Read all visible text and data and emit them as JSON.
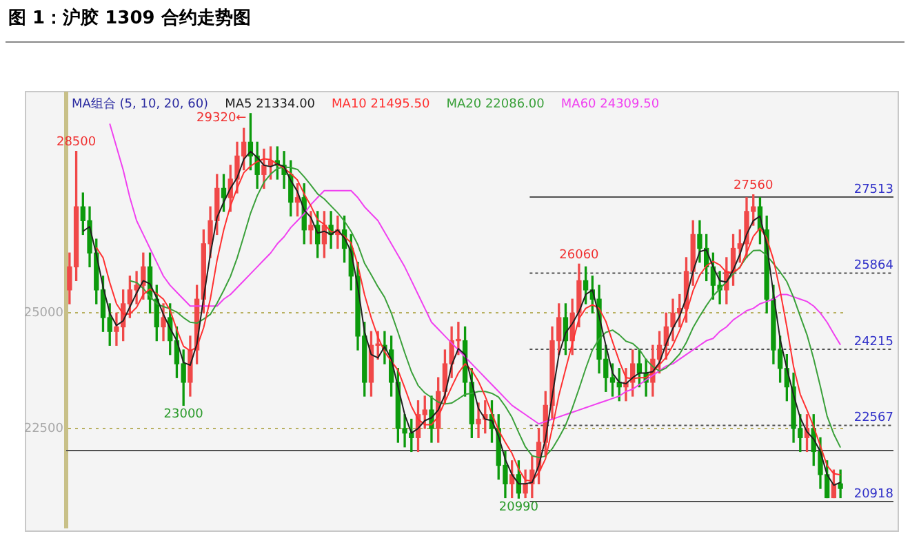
{
  "chart_data": {
    "type": "candlestick",
    "title": "图 1：沪胶 1309 合约走势图",
    "legend_title": "MA组合 (5, 10, 20, 60)",
    "categories": [
      null,
      null,
      null,
      null,
      null,
      null,
      null,
      null,
      null,
      null,
      null,
      null,
      null,
      null,
      null,
      null,
      null,
      null,
      null,
      null,
      null,
      null,
      null,
      null,
      null,
      null,
      null,
      null,
      null,
      null,
      null,
      null,
      null,
      null,
      null,
      null,
      null,
      null,
      null,
      null,
      null,
      null,
      null,
      null,
      null,
      null,
      null,
      null,
      null,
      null,
      null,
      null,
      null,
      null,
      null,
      null,
      null,
      null,
      null,
      null,
      null,
      null,
      null,
      null,
      null,
      null,
      null,
      null,
      null,
      null,
      null,
      null,
      null,
      null,
      null,
      null,
      null,
      null,
      null,
      null,
      null,
      null,
      null,
      null,
      null,
      null,
      null,
      null,
      null,
      null,
      null,
      null,
      null,
      null,
      null,
      null,
      null,
      null,
      null,
      null,
      null,
      null,
      null,
      null,
      null,
      null,
      null,
      null,
      null,
      null,
      null,
      null,
      null,
      null,
      null,
      null
    ],
    "ohlc": [
      [
        25500,
        26300,
        25200,
        26000
      ],
      [
        26000,
        28500,
        25700,
        27300
      ],
      [
        27300,
        27600,
        26700,
        27000
      ],
      [
        27000,
        27300,
        26000,
        26300
      ],
      [
        26300,
        26600,
        25200,
        25500
      ],
      [
        25500,
        25800,
        24600,
        24900
      ],
      [
        24900,
        25200,
        24300,
        24600
      ],
      [
        24600,
        25000,
        24300,
        24700
      ],
      [
        24700,
        25500,
        24400,
        25200
      ],
      [
        25200,
        25800,
        24900,
        25500
      ],
      [
        25500,
        25900,
        25200,
        25600
      ],
      [
        25600,
        26300,
        25300,
        26000
      ],
      [
        26000,
        26300,
        25000,
        25300
      ],
      [
        25300,
        25600,
        24400,
        24700
      ],
      [
        24700,
        25200,
        24400,
        24900
      ],
      [
        24900,
        25200,
        24100,
        24400
      ],
      [
        24400,
        24700,
        23600,
        23900
      ],
      [
        23900,
        24200,
        23000,
        23500
      ],
      [
        23500,
        24500,
        23200,
        24200
      ],
      [
        24200,
        25600,
        23900,
        25300
      ],
      [
        25300,
        26800,
        25000,
        26500
      ],
      [
        26500,
        27300,
        26200,
        27000
      ],
      [
        27000,
        28000,
        26700,
        27700
      ],
      [
        27700,
        28000,
        27200,
        27500
      ],
      [
        27500,
        28200,
        27200,
        27900
      ],
      [
        27900,
        28700,
        27600,
        28400
      ],
      [
        28400,
        29000,
        28100,
        28700
      ],
      [
        28700,
        29320,
        28100,
        28400
      ],
      [
        28400,
        28700,
        27700,
        28000
      ],
      [
        28000,
        28550,
        27700,
        28200
      ],
      [
        28200,
        28600,
        27900,
        28300
      ],
      [
        28300,
        28600,
        27900,
        28200
      ],
      [
        28200,
        28500,
        27700,
        28000
      ],
      [
        28000,
        28300,
        27100,
        27400
      ],
      [
        27400,
        27800,
        27100,
        27500
      ],
      [
        27500,
        27800,
        26500,
        26800
      ],
      [
        26800,
        27200,
        26500,
        26900
      ],
      [
        26900,
        27200,
        26200,
        26500
      ],
      [
        26500,
        27200,
        26200,
        26900
      ],
      [
        26900,
        27200,
        26400,
        26700
      ],
      [
        26700,
        27100,
        26400,
        26800
      ],
      [
        26800,
        27100,
        26100,
        26400
      ],
      [
        26400,
        26700,
        25500,
        25800
      ],
      [
        25800,
        26100,
        24200,
        24500
      ],
      [
        24500,
        24800,
        23200,
        23500
      ],
      [
        23500,
        24600,
        23200,
        24300
      ],
      [
        24300,
        24600,
        24000,
        24300
      ],
      [
        24300,
        24600,
        23900,
        24200
      ],
      [
        24200,
        24500,
        23200,
        23500
      ],
      [
        23500,
        23800,
        22200,
        22500
      ],
      [
        22500,
        22800,
        22100,
        22400
      ],
      [
        22400,
        22700,
        22000,
        22300
      ],
      [
        22300,
        23100,
        22000,
        22800
      ],
      [
        22800,
        23200,
        22500,
        22900
      ],
      [
        22900,
        23200,
        22200,
        22500
      ],
      [
        22500,
        23600,
        22200,
        23300
      ],
      [
        23300,
        24200,
        23050,
        23900
      ],
      [
        23900,
        24700,
        23600,
        24400
      ],
      [
        24400,
        24800,
        24100,
        24400
      ],
      [
        24400,
        24700,
        23200,
        23500
      ],
      [
        23500,
        23800,
        22300,
        22600
      ],
      [
        22600,
        23050,
        22300,
        22700
      ],
      [
        22700,
        23100,
        22400,
        22800
      ],
      [
        22800,
        23100,
        22200,
        22500
      ],
      [
        22500,
        22800,
        21400,
        21700
      ],
      [
        21700,
        22000,
        21000,
        21300
      ],
      [
        21300,
        21800,
        21000,
        21500
      ],
      [
        21500,
        21800,
        20990,
        21100
      ],
      [
        21100,
        21600,
        21000,
        21300
      ],
      [
        21300,
        21900,
        21000,
        21600
      ],
      [
        21600,
        22500,
        21300,
        22200
      ],
      [
        22200,
        23300,
        21900,
        23000
      ],
      [
        23000,
        24700,
        22700,
        24400
      ],
      [
        24400,
        25200,
        24100,
        24900
      ],
      [
        24900,
        25200,
        24100,
        24400
      ],
      [
        24400,
        25300,
        24100,
        25000
      ],
      [
        25000,
        26060,
        24700,
        25700
      ],
      [
        25700,
        26000,
        25200,
        25500
      ],
      [
        25500,
        25800,
        25000,
        25300
      ],
      [
        25300,
        25600,
        23700,
        24000
      ],
      [
        24000,
        24300,
        23300,
        23600
      ],
      [
        23600,
        23900,
        23200,
        23500
      ],
      [
        23500,
        23800,
        23100,
        23400
      ],
      [
        23400,
        23800,
        23100,
        23500
      ],
      [
        23500,
        24200,
        23200,
        23900
      ],
      [
        23900,
        24200,
        23400,
        23700
      ],
      [
        23700,
        24000,
        23200,
        23500
      ],
      [
        23500,
        24300,
        23200,
        24000
      ],
      [
        24000,
        24600,
        23700,
        24300
      ],
      [
        24300,
        25000,
        24000,
        24700
      ],
      [
        24700,
        25300,
        24400,
        25000
      ],
      [
        25000,
        25400,
        24700,
        25100
      ],
      [
        25100,
        26200,
        24800,
        25900
      ],
      [
        25900,
        27000,
        25600,
        26700
      ],
      [
        26700,
        27000,
        26100,
        26400
      ],
      [
        26400,
        26700,
        25700,
        26000
      ],
      [
        26000,
        26300,
        25300,
        25600
      ],
      [
        25600,
        25900,
        25200,
        25500
      ],
      [
        25500,
        26200,
        25200,
        25900
      ],
      [
        25900,
        26700,
        25600,
        26400
      ],
      [
        26400,
        26800,
        26100,
        26500
      ],
      [
        26500,
        27500,
        26200,
        27200
      ],
      [
        27200,
        27560,
        26900,
        27300
      ],
      [
        27300,
        27500,
        26500,
        26800
      ],
      [
        26800,
        27100,
        25000,
        25300
      ],
      [
        25300,
        25600,
        23900,
        24200
      ],
      [
        24200,
        24500,
        23500,
        23800
      ],
      [
        23800,
        24100,
        23100,
        23400
      ],
      [
        23400,
        23700,
        22200,
        22500
      ],
      [
        22500,
        22800,
        22000,
        22300
      ],
      [
        22300,
        22800,
        22000,
        22500
      ],
      [
        22500,
        22800,
        21700,
        22000
      ],
      [
        22000,
        22300,
        21200,
        21500
      ],
      [
        21500,
        21800,
        21000,
        21000
      ],
      [
        21000,
        21600,
        21000,
        21300
      ],
      [
        21300,
        21600,
        21000,
        21200
      ]
    ],
    "colors": [
      "#f04848",
      "#f04848",
      "#0c9a0c",
      "#0c9a0c",
      "#0c9a0c",
      "#0c9a0c",
      "#0c9a0c",
      "#f04848",
      "#f04848",
      "#f04848",
      "#f04848",
      "#f04848",
      "#0c9a0c",
      "#0c9a0c",
      "#f04848",
      "#0c9a0c",
      "#0c9a0c",
      "#0c9a0c",
      "#f04848",
      "#f04848",
      "#f04848",
      "#f04848",
      "#f04848",
      "#0c9a0c",
      "#f04848",
      "#f04848",
      "#f04848",
      "#0c9a0c",
      "#0c9a0c",
      "#f04848",
      "#f04848",
      "#0c9a0c",
      "#0c9a0c",
      "#0c9a0c",
      "#f04848",
      "#0c9a0c",
      "#f04848",
      "#0c9a0c",
      "#f04848",
      "#0c9a0c",
      "#f04848",
      "#0c9a0c",
      "#0c9a0c",
      "#0c9a0c",
      "#0c9a0c",
      "#f04848",
      "#f04848",
      "#0c9a0c",
      "#0c9a0c",
      "#0c9a0c",
      "#0c9a0c",
      "#0c9a0c",
      "#f04848",
      "#f04848",
      "#0c9a0c",
      "#f04848",
      "#f04848",
      "#f04848",
      "#f04848",
      "#0c9a0c",
      "#0c9a0c",
      "#f04848",
      "#f04848",
      "#0c9a0c",
      "#0c9a0c",
      "#0c9a0c",
      "#f04848",
      "#0c9a0c",
      "#f04848",
      "#f04848",
      "#f04848",
      "#f04848",
      "#f04848",
      "#f04848",
      "#0c9a0c",
      "#f04848",
      "#f04848",
      "#0c9a0c",
      "#0c9a0c",
      "#0c9a0c",
      "#0c9a0c",
      "#0c9a0c",
      "#0c9a0c",
      "#f04848",
      "#f04848",
      "#0c9a0c",
      "#0c9a0c",
      "#f04848",
      "#f04848",
      "#f04848",
      "#f04848",
      "#f04848",
      "#f04848",
      "#f04848",
      "#0c9a0c",
      "#0c9a0c",
      "#0c9a0c",
      "#0c9a0c",
      "#f04848",
      "#f04848",
      "#f04848",
      "#f04848",
      "#f04848",
      "#0c9a0c",
      "#0c9a0c",
      "#0c9a0c",
      "#0c9a0c",
      "#0c9a0c",
      "#0c9a0c",
      "#0c9a0c",
      "#f04848",
      "#0c9a0c",
      "#0c9a0c",
      "#0c9a0c",
      "#f04848",
      "#0c9a0c"
    ],
    "series": [
      {
        "name": "MA5 21334.00",
        "type": "line",
        "color": "#202020",
        "values": [
          null,
          null,
          26770,
          26870,
          26270,
          25570,
          25000,
          24730,
          24830,
          25130,
          25430,
          25700,
          25630,
          25330,
          24970,
          24670,
          24400,
          23930,
          23870,
          24330,
          25330,
          26270,
          27070,
          27400,
          27700,
          27930,
          28330,
          28500,
          28370,
          28200,
          28170,
          28230,
          28170,
          27870,
          27630,
          27230,
          27070,
          26730,
          26770,
          26700,
          26800,
          26630,
          26330,
          25570,
          24600,
          24100,
          24030,
          24270,
          24000,
          23400,
          22800,
          22400,
          22500,
          22670,
          22730,
          22900,
          23230,
          23870,
          24230,
          24100,
          23500,
          22930,
          22700,
          22670,
          22330,
          21830,
          21500,
          21300,
          21300,
          21330,
          21700,
          22270,
          23200,
          24100,
          24570,
          24770,
          25030,
          25400,
          25500,
          24930,
          24300,
          23700,
          23500,
          23470,
          23600,
          23700,
          23700,
          23730,
          23930,
          24330,
          24670,
          24930,
          25330,
          25900,
          26330,
          26370,
          26000,
          25700,
          25670,
          25930,
          26270,
          26700,
          27000,
          27100,
          26470,
          25430,
          24430,
          23800,
          23230,
          22730,
          22430,
          22270,
          22000,
          21500,
          21270,
          21334
        ]
      },
      {
        "name": "MA10 21495.50",
        "type": "line",
        "color": "#ff3030",
        "values": [
          null,
          null,
          null,
          null,
          26420,
          26200,
          25660,
          25200,
          24980,
          24980,
          25120,
          25400,
          25520,
          25420,
          25300,
          25060,
          24640,
          24280,
          24180,
          24260,
          24680,
          25300,
          26140,
          26800,
          27320,
          27700,
          28040,
          28180,
          28280,
          28340,
          28320,
          28220,
          28140,
          28020,
          27880,
          27580,
          27320,
          27020,
          26920,
          26760,
          26760,
          26660,
          26520,
          26040,
          25400,
          24900,
          24480,
          24160,
          23960,
          23760,
          23380,
          22980,
          22700,
          22580,
          22580,
          22760,
          23080,
          23400,
          23700,
          23900,
          23760,
          23520,
          23200,
          22820,
          22460,
          22200,
          21960,
          21620,
          21380,
          21360,
          21540,
          21840,
          22500,
          23220,
          23780,
          24340,
          24880,
          25100,
          25180,
          25100,
          24820,
          24380,
          23960,
          23600,
          23580,
          23600,
          23600,
          23720,
          23880,
          24040,
          24300,
          24620,
          25000,
          25480,
          25820,
          26020,
          26120,
          26040,
          25880,
          25880,
          25980,
          26300,
          26660,
          26840,
          26620,
          26160,
          25480,
          24700,
          23840,
          23240,
          22900,
          22540,
          22120,
          21700,
          21520,
          21495.5
        ]
      },
      {
        "name": "MA20 22086.00",
        "type": "line",
        "color": "#3aa03a",
        "values": [
          null,
          null,
          null,
          null,
          null,
          null,
          null,
          null,
          null,
          25700,
          25660,
          25530,
          25360,
          25200,
          25140,
          25090,
          25020,
          24900,
          24800,
          24780,
          24870,
          24970,
          25210,
          25490,
          25790,
          26190,
          26670,
          27160,
          27540,
          27830,
          28010,
          28130,
          28160,
          28150,
          28110,
          27950,
          27770,
          27580,
          27470,
          27320,
          27170,
          26990,
          26770,
          26480,
          26080,
          25830,
          25570,
          25340,
          25000,
          24580,
          24140,
          23730,
          23430,
          23270,
          23170,
          23070,
          23030,
          23050,
          23140,
          23240,
          23260,
          23300,
          23300,
          23260,
          23180,
          22980,
          22740,
          22410,
          22100,
          21910,
          21870,
          21900,
          22060,
          22300,
          22570,
          22940,
          23360,
          23800,
          24200,
          24440,
          24580,
          24630,
          24530,
          24390,
          24340,
          24210,
          23990,
          23840,
          23740,
          23810,
          23950,
          24110,
          24360,
          24680,
          24930,
          25160,
          25370,
          25520,
          25680,
          25850,
          26000,
          26210,
          26350,
          26360,
          26250,
          26070,
          25890,
          25680,
          25340,
          24930,
          24530,
          24010,
          23410,
          22770,
          22380,
          22086
        ]
      },
      {
        "name": "MA60 24309.50",
        "type": "line",
        "color": "#f040f0",
        "values": [
          null,
          null,
          null,
          null,
          null,
          null,
          29100,
          28600,
          28100,
          27500,
          27000,
          26700,
          26400,
          26100,
          25800,
          25600,
          25450,
          25300,
          25150,
          25150,
          25150,
          25150,
          25150,
          25300,
          25400,
          25550,
          25700,
          25850,
          26000,
          26150,
          26300,
          26500,
          26650,
          26850,
          27000,
          27150,
          27350,
          27500,
          27650,
          27650,
          27650,
          27650,
          27650,
          27500,
          27300,
          27150,
          27000,
          26750,
          26500,
          26250,
          26000,
          25700,
          25400,
          25100,
          24800,
          24650,
          24500,
          24350,
          24200,
          24050,
          23900,
          23750,
          23600,
          23450,
          23300,
          23150,
          23000,
          22900,
          22800,
          22700,
          22600,
          22650,
          22700,
          22750,
          22800,
          22850,
          22900,
          22950,
          23000,
          23050,
          23100,
          23150,
          23200,
          23300,
          23350,
          23450,
          23550,
          23650,
          23750,
          23850,
          23900,
          24000,
          24100,
          24200,
          24300,
          24400,
          24450,
          24600,
          24700,
          24850,
          24950,
          25050,
          25100,
          25200,
          25250,
          25300,
          25400,
          25400,
          25350,
          25300,
          25250,
          25150,
          25000,
          24800,
          24550,
          24309.5
        ]
      }
    ],
    "ylim": [
      20350,
      29750
    ],
    "yticks": [
      25000,
      22500
    ],
    "grid": "y",
    "legend": "top",
    "ref_lines": [
      {
        "axis": "y",
        "value": 27513,
        "label": "27513",
        "color": "#505050",
        "line_style": "solid"
      },
      {
        "axis": "y",
        "value": 25864,
        "label": "25864",
        "color": "#505050",
        "line_style": "dotted"
      },
      {
        "axis": "y",
        "value": 24215,
        "label": "24215",
        "color": "#505050",
        "line_style": "dotted"
      },
      {
        "axis": "y",
        "value": 22567,
        "label": "22567",
        "color": "#505050",
        "line_style": "dotted"
      },
      {
        "axis": "y",
        "value": 20918,
        "label": "20918",
        "color": "#505050",
        "line_style": "solid"
      },
      {
        "axis": "y",
        "value": 22020,
        "label": null,
        "color": "#505050",
        "line_style": "solid"
      }
    ],
    "annotations": [
      {
        "text": "28500",
        "y": 28500
      },
      "29320←",
      {
        "text": "23000",
        "y": 23000
      },
      {
        "text": "26060",
        "y": 26060
      },
      {
        "text": "27560",
        "y": 27560
      },
      {
        "text": "20990",
        "y": 20990
      }
    ]
  }
}
